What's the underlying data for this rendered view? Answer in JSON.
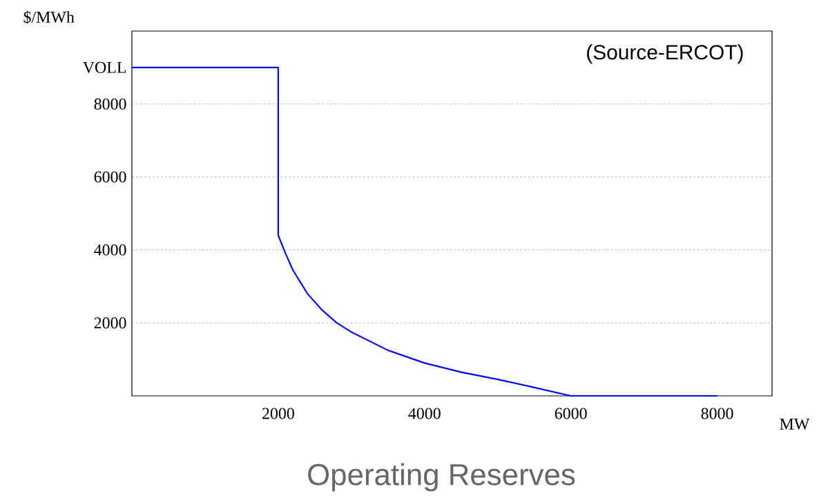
{
  "chart_data": {
    "type": "line",
    "title": "Operating Reserves",
    "xlabel": "MW",
    "ylabel": "$/MWh",
    "annotations": [
      "(Source-ERCOT)"
    ],
    "series": [
      {
        "color": "#0000ff",
        "x": [
          0,
          2000,
          2000,
          2100,
          2200,
          2400,
          2600,
          2800,
          3000,
          3500,
          4000,
          4500,
          5000,
          5500,
          6000,
          8000
        ],
        "values": [
          9000,
          9000,
          4400,
          3900,
          3450,
          2800,
          2350,
          2000,
          1750,
          1250,
          900,
          650,
          450,
          230,
          0,
          0
        ]
      }
    ],
    "xlim": [
      0,
      8750
    ],
    "ylim": [
      0,
      10000
    ],
    "xticks": [
      2000,
      4000,
      6000,
      8000
    ],
    "yticks": [
      2000,
      4000,
      6000,
      8000,
      {
        "value": 9000,
        "label": "VOLL"
      }
    ],
    "grid": "y",
    "marker": "none",
    "line_style": "solid"
  }
}
